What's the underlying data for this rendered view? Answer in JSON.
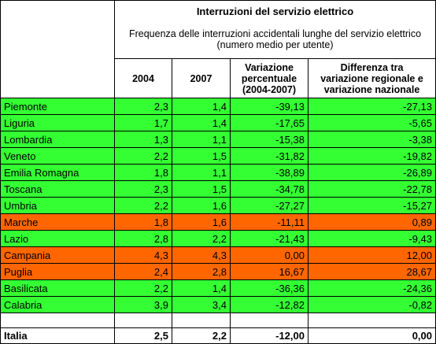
{
  "header": {
    "title": "Interruzioni del servizio elettrico",
    "subtitle": "Frequenza delle interruzioni accidentali lunghe del servizio elettrico (numero medio per utente)"
  },
  "table": {
    "columns": [
      "2004",
      "2007",
      "Variazione\npercentuale\n(2004-2007)",
      "Differenza tra\nvariazione regionale e\nvariazione nazionale"
    ],
    "rows": [
      [
        "Piemonte",
        "2,3",
        "1,4",
        "-39,13",
        "-27,13"
      ],
      [
        "Liguria",
        "1,7",
        "1,4",
        "-17,65",
        "-5,65"
      ],
      [
        "Lombardia",
        "1,3",
        "1,1",
        "-15,38",
        "-3,38"
      ],
      [
        "Veneto",
        "2,2",
        "1,5",
        "-31,82",
        "-19,82"
      ],
      [
        "Emilia Romagna",
        "1,8",
        "1,1",
        "-38,89",
        "-26,89"
      ],
      [
        "Toscana",
        "2,3",
        "1,5",
        "-34,78",
        "-22,78"
      ],
      [
        "Umbria",
        "2,2",
        "1,6",
        "-27,27",
        "-15,27"
      ],
      [
        "Marche",
        "1,8",
        "1,6",
        "-11,11",
        "0,89"
      ],
      [
        "Lazio",
        "2,8",
        "2,2",
        "-21,43",
        "-9,43"
      ],
      [
        "Campania",
        "4,3",
        "4,3",
        "0,00",
        "12,00"
      ],
      [
        "Puglia",
        "2,4",
        "2,8",
        "16,67",
        "28,67"
      ],
      [
        "Basilicata",
        "2,2",
        "1,4",
        "-36,36",
        "-24,36"
      ],
      [
        "Calabria",
        "3,9",
        "3,4",
        "-12,82",
        "-0,82"
      ]
    ],
    "row_colors": [
      "#33ff33",
      "#33ff33",
      "#33ff33",
      "#33ff33",
      "#33ff33",
      "#33ff33",
      "#33ff33",
      "#ff6600",
      "#33ff33",
      "#ff6600",
      "#ff6600",
      "#33ff33",
      "#33ff33"
    ],
    "total": [
      "Italia",
      "2,5",
      "2,2",
      "-12,00",
      "0,00"
    ]
  }
}
